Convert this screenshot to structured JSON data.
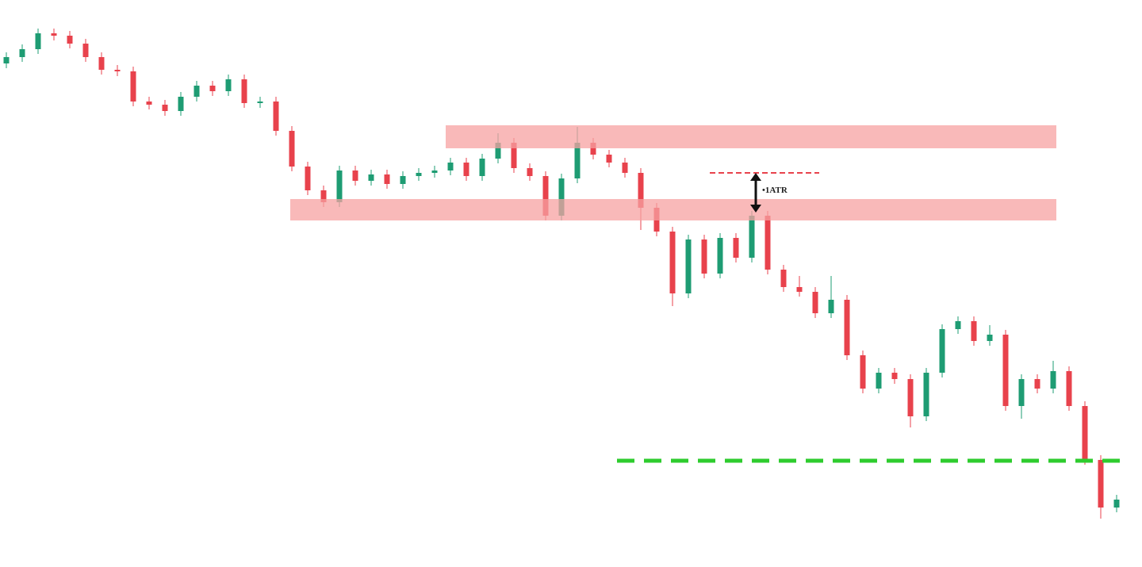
{
  "chart_data": {
    "type": "candlestick",
    "annotation": "•1ATR",
    "categories": [
      null,
      null,
      null,
      null,
      null,
      null,
      null,
      null,
      null,
      null,
      null,
      null,
      null,
      null,
      null,
      null,
      null,
      null,
      null,
      null,
      null,
      null,
      null,
      null,
      null,
      null,
      null,
      null,
      null,
      null,
      null,
      null,
      null,
      null,
      null,
      null,
      null,
      null,
      null,
      null,
      null,
      null,
      null,
      null,
      null,
      null,
      null,
      null,
      null,
      null,
      null,
      null,
      null,
      null,
      null,
      null,
      null,
      null,
      null,
      null,
      null,
      null,
      null,
      null,
      null,
      null,
      null,
      null,
      null,
      null,
      null
    ],
    "open": [
      635,
      643,
      653,
      673,
      670,
      660,
      643,
      627,
      625,
      587,
      583,
      575,
      593,
      607,
      600,
      615,
      585,
      587,
      550,
      505,
      475,
      460,
      500,
      487,
      495,
      483,
      493,
      497,
      500,
      510,
      493,
      515,
      535,
      503,
      493,
      443,
      490,
      535,
      520,
      510,
      497,
      453,
      423,
      345,
      413,
      370,
      415,
      390,
      443,
      375,
      353,
      347,
      320,
      337,
      267,
      225,
      245,
      237,
      190,
      245,
      300,
      310,
      285,
      293,
      203,
      237,
      225,
      247,
      203,
      135,
      75
    ],
    "high": [
      649,
      659,
      679,
      679,
      676,
      666,
      649,
      633,
      631,
      593,
      589,
      599,
      613,
      613,
      621,
      621,
      593,
      593,
      556,
      511,
      481,
      506,
      506,
      501,
      501,
      499,
      503,
      506,
      516,
      516,
      521,
      547,
      541,
      509,
      499,
      496,
      555,
      541,
      526,
      516,
      503,
      459,
      429,
      419,
      419,
      421,
      421,
      449,
      449,
      381,
      367,
      353,
      367,
      343,
      273,
      251,
      251,
      243,
      251,
      306,
      316,
      316,
      305,
      299,
      243,
      243,
      260,
      253,
      209,
      141,
      91
    ],
    "low": [
      629,
      637,
      647,
      664,
      654,
      637,
      621,
      619,
      581,
      577,
      569,
      569,
      587,
      594,
      594,
      579,
      579,
      544,
      499,
      469,
      454,
      454,
      481,
      481,
      477,
      477,
      487,
      491,
      494,
      487,
      487,
      509,
      497,
      487,
      437,
      437,
      484,
      514,
      504,
      491,
      425,
      417,
      329,
      339,
      364,
      364,
      384,
      384,
      369,
      347,
      341,
      314,
      314,
      261,
      219,
      219,
      231,
      176,
      184,
      239,
      294,
      279,
      279,
      197,
      187,
      219,
      219,
      197,
      129,
      61,
      69
    ],
    "close": [
      643,
      653,
      673,
      670,
      660,
      643,
      627,
      625,
      587,
      583,
      575,
      593,
      607,
      600,
      615,
      585,
      587,
      550,
      505,
      475,
      460,
      500,
      487,
      495,
      483,
      493,
      497,
      500,
      510,
      493,
      515,
      535,
      503,
      493,
      443,
      490,
      535,
      520,
      510,
      497,
      453,
      423,
      345,
      413,
      370,
      415,
      390,
      443,
      375,
      353,
      347,
      320,
      337,
      267,
      225,
      245,
      237,
      190,
      245,
      300,
      310,
      285,
      293,
      203,
      237,
      225,
      247,
      203,
      135,
      75,
      85
    ],
    "up_color": "#1e9c73",
    "down_color": "#e8424c",
    "ylim": [
      0,
      715
    ]
  }
}
